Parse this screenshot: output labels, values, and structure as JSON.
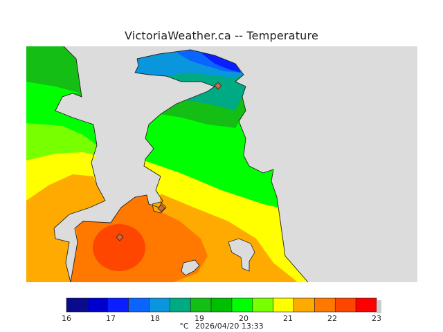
{
  "title": "VictoriaWeather.ca -- Temperature",
  "colorbar": {
    "colors": [
      "#0a0a8c",
      "#0000cc",
      "#0a1eff",
      "#0a64ff",
      "#0a96dc",
      "#00aa82",
      "#14be14",
      "#00be00",
      "#00ff00",
      "#78ff00",
      "#ffff00",
      "#ffaa00",
      "#ff7800",
      "#ff4600",
      "#ff0000"
    ],
    "ticks": [
      "16",
      "17",
      "18",
      "19",
      "20",
      "21",
      "22",
      "23"
    ]
  },
  "caption": {
    "unit": "°C",
    "timestamp": "2026/04/20 13:33"
  },
  "colors": {
    "land": "#dcdcdc",
    "coast": "#222222"
  },
  "stations": [
    "station-north",
    "station-central",
    "station-southwest"
  ]
}
